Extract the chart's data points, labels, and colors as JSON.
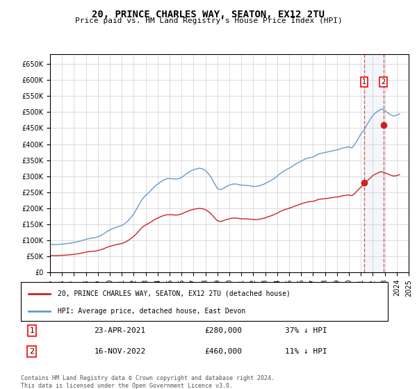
{
  "title": "20, PRINCE CHARLES WAY, SEATON, EX12 2TU",
  "subtitle": "Price paid vs. HM Land Registry's House Price Index (HPI)",
  "ylabel": "",
  "ylim": [
    0,
    680000
  ],
  "yticks": [
    0,
    50000,
    100000,
    150000,
    200000,
    250000,
    300000,
    350000,
    400000,
    450000,
    500000,
    550000,
    600000,
    650000
  ],
  "background_color": "#ffffff",
  "grid_color": "#cccccc",
  "hpi_color": "#6699cc",
  "price_color": "#cc2222",
  "legend_label_price": "20, PRINCE CHARLES WAY, SEATON, EX12 2TU (detached house)",
  "legend_label_hpi": "HPI: Average price, detached house, East Devon",
  "transaction1_label": "1",
  "transaction1_date": "23-APR-2021",
  "transaction1_price": "£280,000",
  "transaction1_hpi": "37% ↓ HPI",
  "transaction2_label": "2",
  "transaction2_date": "16-NOV-2022",
  "transaction2_price": "£460,000",
  "transaction2_hpi": "11% ↓ HPI",
  "footnote": "Contains HM Land Registry data © Crown copyright and database right 2024.\nThis data is licensed under the Open Government Licence v3.0.",
  "hpi_data": {
    "years": [
      1995.0,
      1995.25,
      1995.5,
      1995.75,
      1996.0,
      1996.25,
      1996.5,
      1996.75,
      1997.0,
      1997.25,
      1997.5,
      1997.75,
      1998.0,
      1998.25,
      1998.5,
      1998.75,
      1999.0,
      1999.25,
      1999.5,
      1999.75,
      2000.0,
      2000.25,
      2000.5,
      2000.75,
      2001.0,
      2001.25,
      2001.5,
      2001.75,
      2002.0,
      2002.25,
      2002.5,
      2002.75,
      2003.0,
      2003.25,
      2003.5,
      2003.75,
      2004.0,
      2004.25,
      2004.5,
      2004.75,
      2005.0,
      2005.25,
      2005.5,
      2005.75,
      2006.0,
      2006.25,
      2006.5,
      2006.75,
      2007.0,
      2007.25,
      2007.5,
      2007.75,
      2008.0,
      2008.25,
      2008.5,
      2008.75,
      2009.0,
      2009.25,
      2009.5,
      2009.75,
      2010.0,
      2010.25,
      2010.5,
      2010.75,
      2011.0,
      2011.25,
      2011.5,
      2011.75,
      2012.0,
      2012.25,
      2012.5,
      2012.75,
      2013.0,
      2013.25,
      2013.5,
      2013.75,
      2014.0,
      2014.25,
      2014.5,
      2014.75,
      2015.0,
      2015.25,
      2015.5,
      2015.75,
      2016.0,
      2016.25,
      2016.5,
      2016.75,
      2017.0,
      2017.25,
      2017.5,
      2017.75,
      2018.0,
      2018.25,
      2018.5,
      2018.75,
      2019.0,
      2019.25,
      2019.5,
      2019.75,
      2020.0,
      2020.25,
      2020.5,
      2020.75,
      2021.0,
      2021.25,
      2021.5,
      2021.75,
      2022.0,
      2022.25,
      2022.5,
      2022.75,
      2023.0,
      2023.25,
      2023.5,
      2023.75,
      2024.0,
      2024.25
    ],
    "values": [
      88000,
      87000,
      86500,
      87000,
      88000,
      89000,
      90000,
      91500,
      93000,
      95000,
      97000,
      100000,
      103000,
      105000,
      107000,
      108000,
      111000,
      115000,
      120000,
      127000,
      132000,
      136000,
      140000,
      143000,
      146000,
      152000,
      160000,
      170000,
      182000,
      198000,
      215000,
      230000,
      240000,
      248000,
      258000,
      268000,
      275000,
      282000,
      288000,
      292000,
      293000,
      292000,
      291000,
      292000,
      296000,
      303000,
      310000,
      316000,
      320000,
      323000,
      325000,
      323000,
      318000,
      308000,
      295000,
      277000,
      262000,
      258000,
      262000,
      268000,
      272000,
      275000,
      276000,
      274000,
      272000,
      272000,
      271000,
      270000,
      268000,
      268000,
      270000,
      273000,
      277000,
      282000,
      287000,
      293000,
      300000,
      308000,
      315000,
      320000,
      325000,
      330000,
      337000,
      342000,
      347000,
      352000,
      356000,
      358000,
      360000,
      365000,
      370000,
      372000,
      374000,
      376000,
      378000,
      380000,
      382000,
      385000,
      388000,
      390000,
      392000,
      388000,
      400000,
      415000,
      432000,
      443000,
      460000,
      475000,
      490000,
      498000,
      505000,
      510000,
      505000,
      498000,
      492000,
      488000,
      490000,
      495000
    ]
  },
  "price_data": {
    "years": [
      1995.0,
      1995.25,
      1995.5,
      1995.75,
      1996.0,
      1996.25,
      1996.5,
      1996.75,
      1997.0,
      1997.25,
      1997.5,
      1997.75,
      1998.0,
      1998.25,
      1998.5,
      1998.75,
      1999.0,
      1999.25,
      1999.5,
      1999.75,
      2000.0,
      2000.25,
      2000.5,
      2000.75,
      2001.0,
      2001.25,
      2001.5,
      2001.75,
      2002.0,
      2002.25,
      2002.5,
      2002.75,
      2003.0,
      2003.25,
      2003.5,
      2003.75,
      2004.0,
      2004.25,
      2004.5,
      2004.75,
      2005.0,
      2005.25,
      2005.5,
      2005.75,
      2006.0,
      2006.25,
      2006.5,
      2006.75,
      2007.0,
      2007.25,
      2007.5,
      2007.75,
      2008.0,
      2008.25,
      2008.5,
      2008.75,
      2009.0,
      2009.25,
      2009.5,
      2009.75,
      2010.0,
      2010.25,
      2010.5,
      2010.75,
      2011.0,
      2011.25,
      2011.5,
      2011.75,
      2012.0,
      2012.25,
      2012.5,
      2012.75,
      2013.0,
      2013.25,
      2013.5,
      2013.75,
      2014.0,
      2014.25,
      2014.5,
      2014.75,
      2015.0,
      2015.25,
      2015.5,
      2015.75,
      2016.0,
      2016.25,
      2016.5,
      2016.75,
      2017.0,
      2017.25,
      2017.5,
      2017.75,
      2018.0,
      2018.25,
      2018.5,
      2018.75,
      2019.0,
      2019.25,
      2019.5,
      2019.75,
      2020.0,
      2020.25,
      2020.5,
      2020.75,
      2021.0,
      2021.25,
      2021.5,
      2021.75,
      2022.0,
      2022.25,
      2022.5,
      2022.75,
      2023.0,
      2023.25,
      2023.5,
      2023.75,
      2024.0,
      2024.25
    ],
    "values": [
      52000,
      52500,
      52000,
      52500,
      53000,
      53500,
      54000,
      55000,
      56000,
      57500,
      59000,
      61000,
      63000,
      64500,
      65500,
      66000,
      68000,
      70500,
      73500,
      78000,
      81000,
      83500,
      86000,
      88000,
      90000,
      93500,
      98500,
      105000,
      112000,
      121500,
      132000,
      141500,
      148000,
      152500,
      158500,
      164500,
      169000,
      173500,
      177000,
      179500,
      180000,
      179500,
      178500,
      179500,
      182000,
      186500,
      190500,
      194000,
      196500,
      198500,
      199500,
      198500,
      195500,
      189500,
      181500,
      170500,
      161000,
      158500,
      161000,
      164500,
      167000,
      169000,
      169500,
      168500,
      167000,
      167000,
      166500,
      166000,
      164500,
      164500,
      165500,
      167500,
      170000,
      173500,
      176500,
      180500,
      184500,
      189500,
      194000,
      197000,
      200000,
      203000,
      207000,
      210000,
      213500,
      216500,
      219000,
      220500,
      221500,
      224500,
      228000,
      229000,
      230000,
      231000,
      232500,
      234000,
      235000,
      237000,
      239000,
      240500,
      241500,
      239000,
      246500,
      256500,
      266000,
      274000,
      284000,
      293000,
      302000,
      307000,
      311500,
      314000,
      311000,
      307000,
      303000,
      300500,
      302000,
      305000
    ]
  },
  "transaction1_x": 2021.3,
  "transaction1_y": 280000,
  "transaction2_x": 2022.88,
  "transaction2_y": 460000,
  "xmin": 1995,
  "xmax": 2025
}
